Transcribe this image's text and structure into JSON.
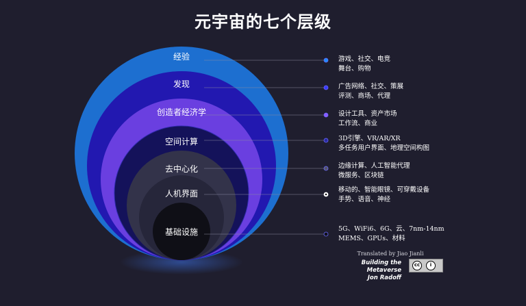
{
  "title": "元宇宙的七个层级",
  "layers": [
    {
      "name": "经验",
      "description": [
        "游戏、社交、电竞",
        "舞台、购物"
      ],
      "color": "#1d6fd0",
      "dot": "#1f8cff"
    },
    {
      "name": "发现",
      "description": [
        "广告网络、社交、策展",
        "评测、商场、代理"
      ],
      "color": "#2218b0",
      "dot": "#3a3aff"
    },
    {
      "name": "创造者经济学",
      "description": [
        "设计工具、资产市场",
        "工作流、商业"
      ],
      "color": "#6a3fe0",
      "dot": "#8a5cff"
    },
    {
      "name": "空间计算",
      "description": [
        "3D引擎、VR/AR/XR",
        "多任务用户界面、地理空间构图"
      ],
      "color": "#14125a",
      "dot": "#2a2aa0"
    },
    {
      "name": "去中心化",
      "description": [
        "边缘计算、人工智能代理",
        "微服务、区块链"
      ],
      "color": "#33334a",
      "dot": "#55556a"
    },
    {
      "name": "人机界面",
      "description": [
        "移动的、智能眼镜、可穿戴设备",
        "手势、语音、神经"
      ],
      "color": "#26263a",
      "dot": "#ffffff"
    },
    {
      "name": "基础设施",
      "description": [
        "5G、WiFi6、6G、云、7nm-14nm",
        "MEMS、GPUs、材料"
      ],
      "color": "#0f0f16",
      "dot": "#111118"
    }
  ],
  "credit": {
    "translator": "Translated by Jiao Jianli",
    "book": "Building the Metaverse",
    "author": "Jon Radoff"
  },
  "license": {
    "cc": "cc",
    "by": "i"
  }
}
